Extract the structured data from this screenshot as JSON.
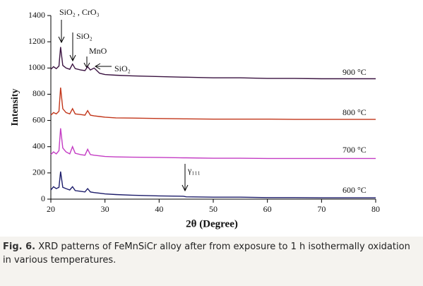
{
  "chart_data": {
    "type": "line",
    "xlabel": "2θ (Degree)",
    "ylabel": "Intensity",
    "xlim": [
      20,
      80
    ],
    "xticks": [
      20,
      30,
      40,
      50,
      60,
      70,
      80
    ],
    "ylim": [
      0,
      1400
    ],
    "yticks": [
      0,
      200,
      400,
      600,
      800,
      1000,
      1200,
      1400
    ],
    "x": [
      20,
      20.5,
      21,
      21.5,
      21.8,
      22.2,
      22.8,
      23.5,
      24,
      24.5,
      25.5,
      26.3,
      26.8,
      27.3,
      28,
      29,
      30,
      32,
      35,
      40,
      44.5,
      45,
      50,
      55,
      60,
      65,
      70,
      75,
      80
    ],
    "series": [
      {
        "name": "600 °C",
        "color": "#1c1c6a",
        "values": [
          70,
          95,
          80,
          90,
          210,
          90,
          80,
          70,
          95,
          65,
          60,
          55,
          80,
          55,
          50,
          45,
          40,
          35,
          30,
          25,
          22,
          18,
          15,
          15,
          12,
          12,
          10,
          10,
          10
        ]
      },
      {
        "name": "700 °C",
        "color": "#c43cc4",
        "values": [
          340,
          360,
          345,
          370,
          540,
          390,
          360,
          345,
          400,
          350,
          340,
          335,
          380,
          340,
          335,
          330,
          325,
          322,
          320,
          318,
          315,
          315,
          312,
          312,
          310,
          310,
          310,
          310,
          310
        ]
      },
      {
        "name": "800 °C",
        "color": "#c2361a",
        "values": [
          640,
          660,
          650,
          670,
          850,
          690,
          660,
          650,
          690,
          650,
          645,
          640,
          675,
          640,
          635,
          630,
          625,
          620,
          618,
          615,
          612,
          612,
          610,
          610,
          610,
          608,
          608,
          608,
          608
        ]
      },
      {
        "name": "900 °C",
        "color": "#3a1240",
        "values": [
          990,
          1010,
          995,
          1015,
          1160,
          1020,
          1000,
          990,
          1030,
          995,
          985,
          980,
          1010,
          985,
          1000,
          960,
          950,
          945,
          940,
          935,
          930,
          930,
          925,
          925,
          920,
          920,
          918,
          918,
          918
        ]
      }
    ],
    "annotations": [
      "SiO₂ , CrO₃",
      "SiO₂",
      "MnO",
      "SiO₂",
      "γ₁₁₁"
    ]
  },
  "caption_label": "Fig. 6.",
  "caption": "XRD patterns of FeMnSiCr alloy after from exposure to 1 h isothermally oxidation in various temperatures."
}
